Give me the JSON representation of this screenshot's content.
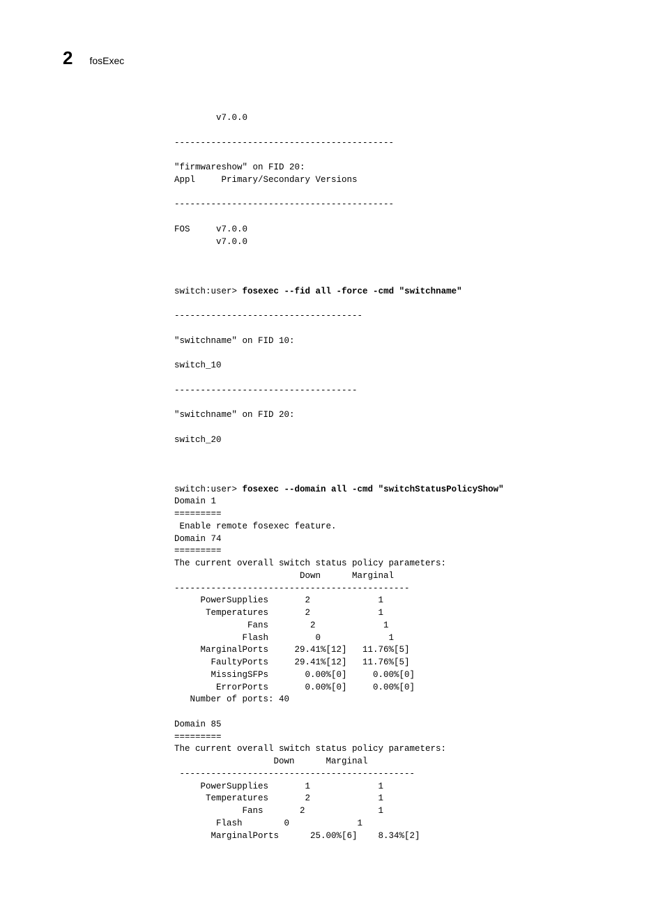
{
  "header": {
    "chapter_number": "2",
    "title": "fosExec"
  },
  "lines": [
    {
      "text": "        v7.0.0"
    },
    {
      "text": ""
    },
    {
      "text": "------------------------------------------"
    },
    {
      "text": ""
    },
    {
      "text": "\"firmwareshow\" on FID 20:"
    },
    {
      "text": "Appl     Primary/Secondary Versions"
    },
    {
      "text": ""
    },
    {
      "text": "------------------------------------------"
    },
    {
      "text": ""
    },
    {
      "text": "FOS     v7.0.0"
    },
    {
      "text": "        v7.0.0"
    },
    {
      "text": ""
    },
    {
      "text": ""
    },
    {
      "text": ""
    },
    {
      "prefix": "switch:user> ",
      "bold": "fosexec --fid all -force -cmd \"switchname\""
    },
    {
      "text": ""
    },
    {
      "text": "------------------------------------"
    },
    {
      "text": ""
    },
    {
      "text": "\"switchname\" on FID 10:"
    },
    {
      "text": ""
    },
    {
      "text": "switch_10"
    },
    {
      "text": ""
    },
    {
      "text": "-----------------------------------"
    },
    {
      "text": ""
    },
    {
      "text": "\"switchname\" on FID 20:"
    },
    {
      "text": ""
    },
    {
      "text": "switch_20"
    },
    {
      "text": ""
    },
    {
      "text": ""
    },
    {
      "text": ""
    },
    {
      "prefix": "switch:user> ",
      "bold": "fosexec --domain all -cmd \"switchStatusPolicyShow\""
    },
    {
      "text": "Domain 1"
    },
    {
      "text": "========="
    },
    {
      "text": " Enable remote fosexec feature."
    },
    {
      "text": "Domain 74"
    },
    {
      "text": "========="
    },
    {
      "text": "The current overall switch status policy parameters:"
    },
    {
      "text": "                        Down      Marginal"
    },
    {
      "text": "---------------------------------------------"
    },
    {
      "text": "     PowerSupplies       2             1"
    },
    {
      "text": "      Temperatures       2             1"
    },
    {
      "text": "              Fans        2             1"
    },
    {
      "text": "             Flash         0             1"
    },
    {
      "text": "     MarginalPorts     29.41%[12]   11.76%[5]"
    },
    {
      "text": "       FaultyPorts     29.41%[12]   11.76%[5]"
    },
    {
      "text": "       MissingSFPs       0.00%[0]     0.00%[0]"
    },
    {
      "text": "        ErrorPorts       0.00%[0]     0.00%[0]"
    },
    {
      "text": "   Number of ports: 40"
    },
    {
      "text": ""
    },
    {
      "text": "Domain 85"
    },
    {
      "text": "========="
    },
    {
      "text": "The current overall switch status policy parameters:"
    },
    {
      "text": "                   Down      Marginal"
    },
    {
      "text": " ---------------------------------------------"
    },
    {
      "text": "     PowerSupplies       1             1"
    },
    {
      "text": "      Temperatures       2             1"
    },
    {
      "text": "             Fans       2              1"
    },
    {
      "text": "        Flash        0             1"
    },
    {
      "text": "       MarginalPorts      25.00%[6]    8.34%[2]"
    }
  ]
}
